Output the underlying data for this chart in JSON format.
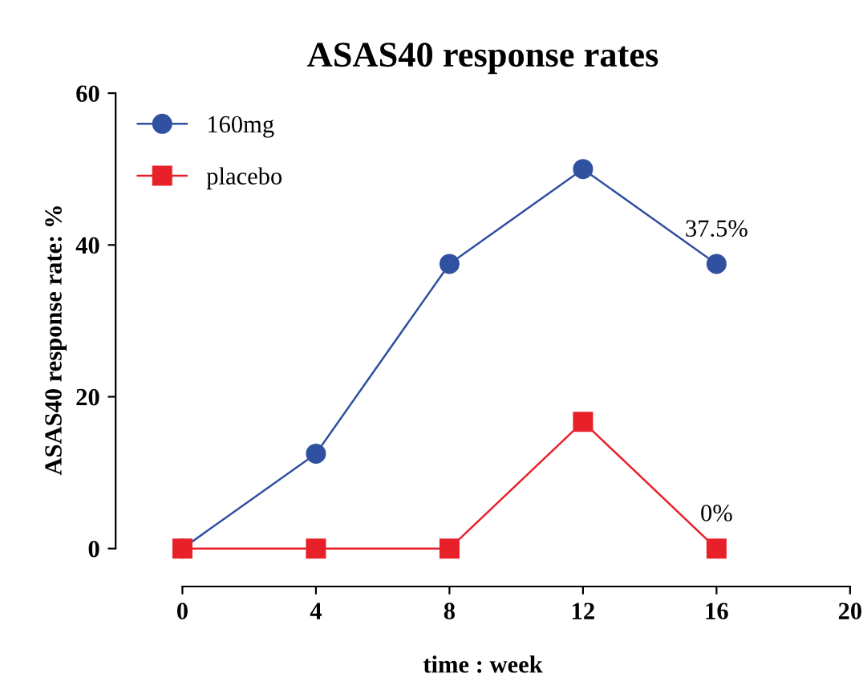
{
  "chart_data": {
    "type": "line",
    "title": "ASAS40 response rates",
    "xlabel": "time : week",
    "ylabel": "ASAS40 response rate: %",
    "x": [
      0,
      4,
      8,
      12,
      16
    ],
    "series": [
      {
        "name": "160mg",
        "color": "#3050a0",
        "values": [
          0,
          12.5,
          37.5,
          50,
          37.5
        ],
        "marker": "circle"
      },
      {
        "name": "placebo",
        "color": "#e8202a",
        "values": [
          0,
          0,
          0,
          16.7,
          0
        ],
        "marker": "square"
      }
    ],
    "annotations": [
      {
        "text": "37.5%",
        "x": 16,
        "y": 37.5
      },
      {
        "text": "0%",
        "x": 16,
        "y": 0
      }
    ],
    "xlim": [
      -2,
      20
    ],
    "ylim": [
      -5,
      60
    ],
    "xticks": [
      0,
      4,
      8,
      12,
      16,
      20
    ],
    "yticks": [
      0,
      20,
      40,
      60
    ],
    "grid": false,
    "legend": "top left",
    "line_style": "solid"
  }
}
